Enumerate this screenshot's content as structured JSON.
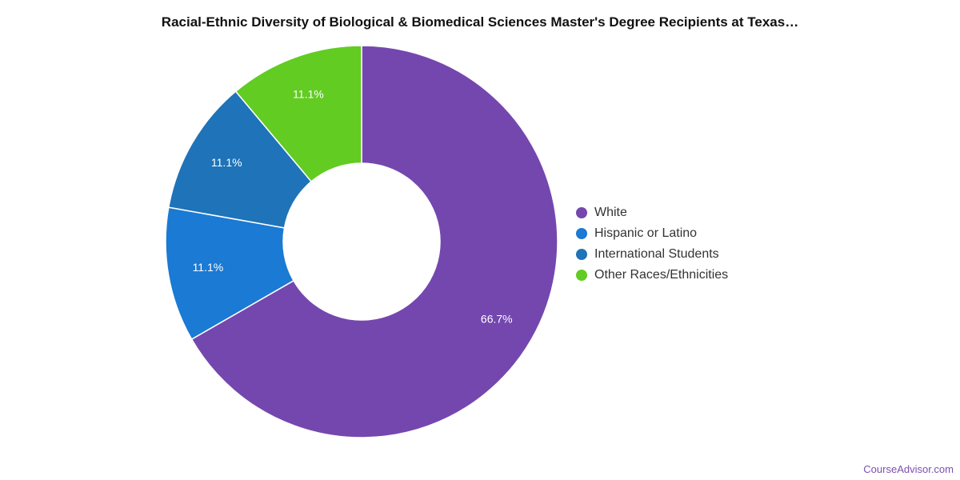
{
  "chart_data": {
    "type": "pie",
    "title": "Racial-Ethnic Diversity of Biological & Biomedical Sciences Master's Degree Recipients at Texas…",
    "donut": true,
    "legend_position": "right",
    "slices": [
      {
        "name": "White",
        "value": 66.7,
        "label": "66.7%",
        "color": "#7447ae"
      },
      {
        "name": "Hispanic or Latino",
        "value": 11.1,
        "label": "11.1%",
        "color": "#1a7ad4"
      },
      {
        "name": "International Students",
        "value": 11.1,
        "label": "11.1%",
        "color": "#1f73b8"
      },
      {
        "name": "Other Races/Ethnicities",
        "value": 11.1,
        "label": "11.1%",
        "color": "#62cc22"
      }
    ]
  },
  "watermark": "CourseAdvisor.com"
}
